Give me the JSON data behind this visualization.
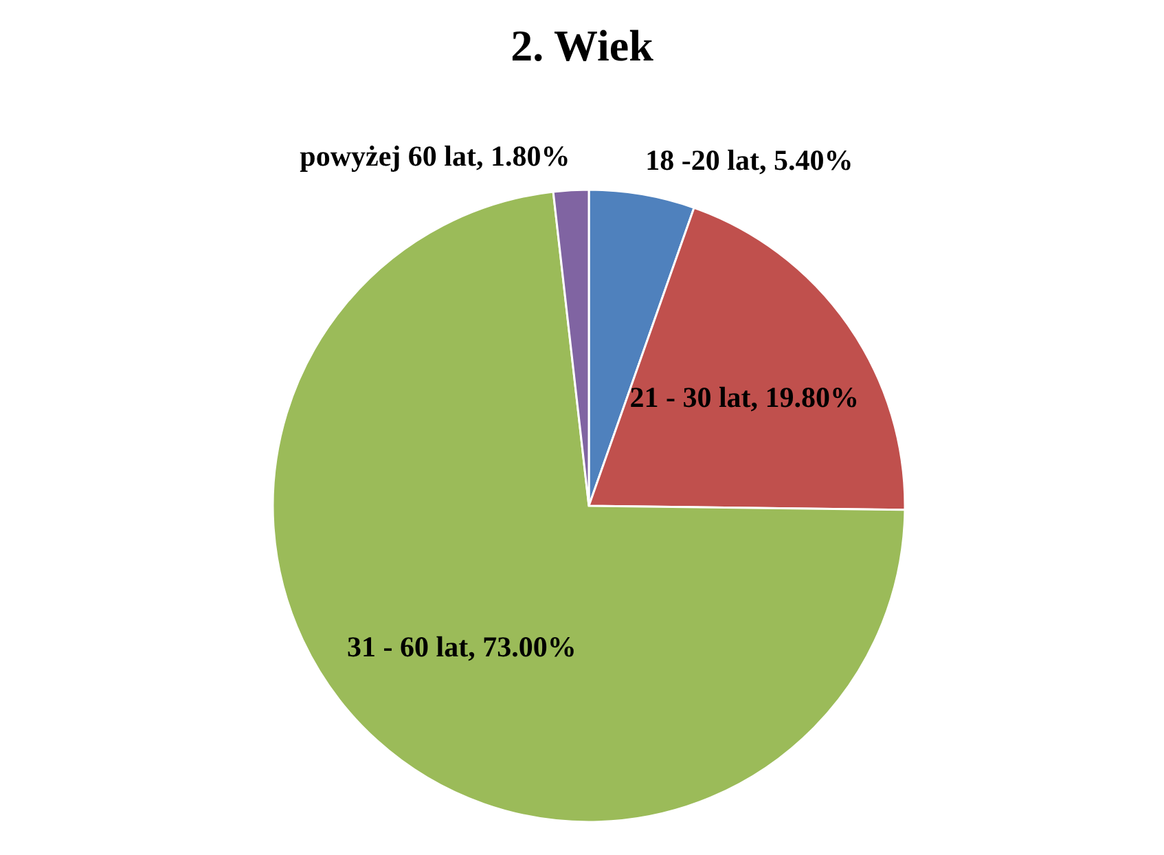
{
  "chart_data": {
    "type": "pie",
    "title": "2. Wiek",
    "categories": [
      "18 -20 lat",
      "21 - 30 lat",
      "31 - 60 lat",
      "powyżej 60 lat"
    ],
    "values": [
      5.4,
      19.8,
      73.0,
      1.8
    ],
    "colors": [
      "#4f81bd",
      "#c0504d",
      "#9bbb59",
      "#8064a2"
    ],
    "value_labels": [
      "5.40%",
      "19.80%",
      "73.00%",
      "1.80%"
    ]
  }
}
